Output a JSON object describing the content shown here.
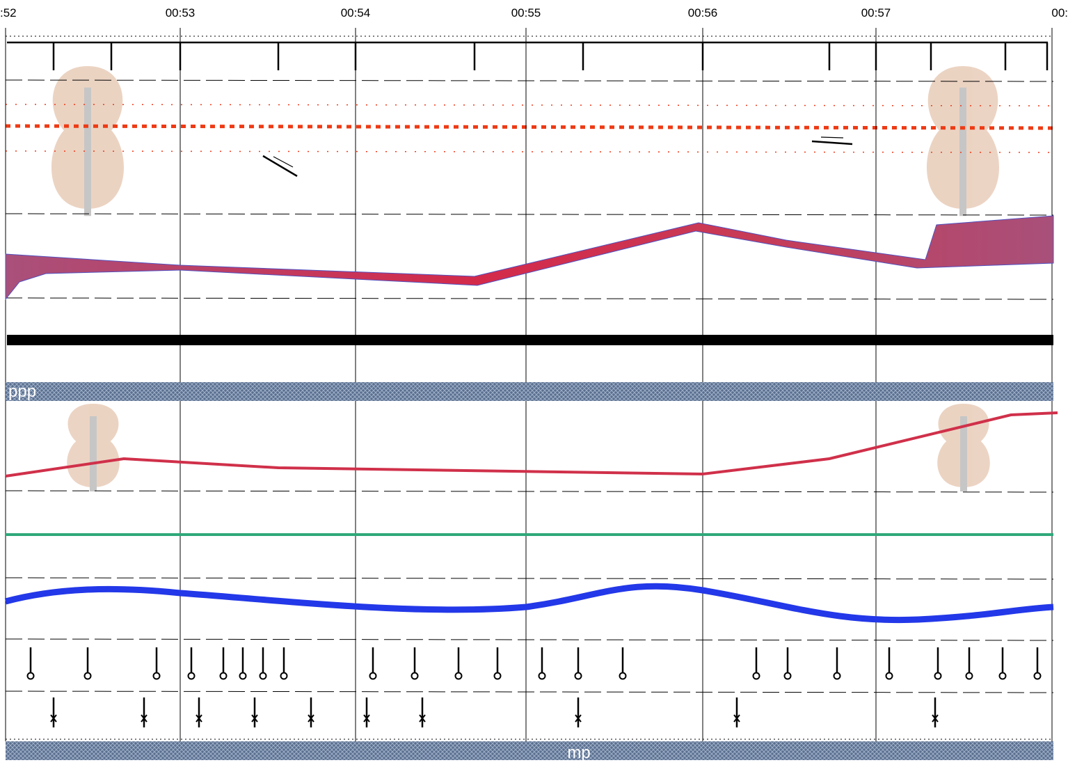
{
  "timeline": {
    "time_labels": [
      ":52",
      "00:53",
      "00:54",
      "00:55",
      "00:56",
      "00:57",
      "00:"
    ]
  },
  "dynamics": {
    "upper": "ppp",
    "lower": "mp"
  }
}
